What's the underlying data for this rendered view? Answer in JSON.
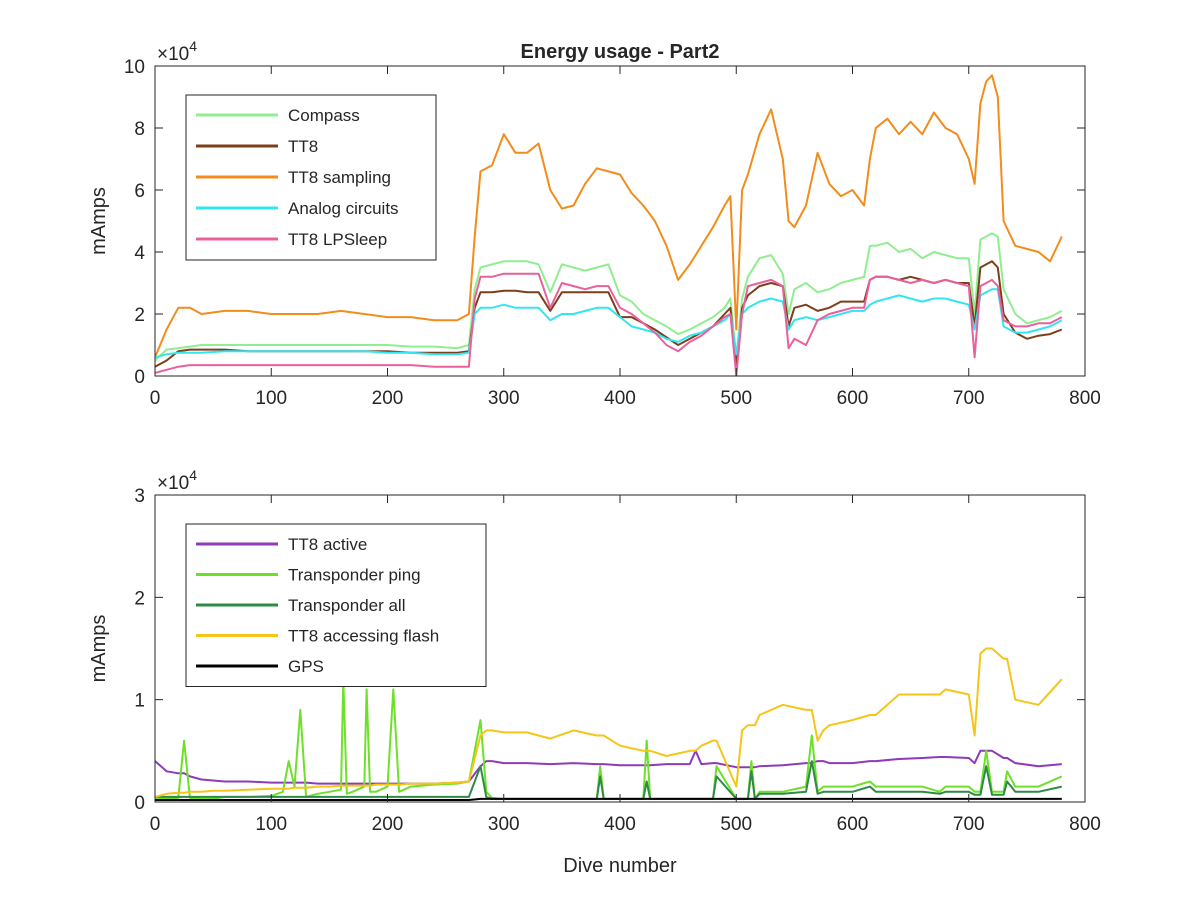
{
  "figure": {
    "xlabel": "Dive number"
  },
  "chart_data": [
    {
      "type": "line",
      "title": "Energy usage - Part2",
      "xlabel": "",
      "ylabel": "mAmps",
      "exponent_label": "×10",
      "exponent_power": "4",
      "xlim": [
        0,
        800
      ],
      "ylim": [
        0,
        100000
      ],
      "xticks": [
        0,
        100,
        200,
        300,
        400,
        500,
        600,
        700,
        800
      ],
      "xtick_labels": [
        "0",
        "100",
        "200",
        "300",
        "400",
        "500",
        "600",
        "700",
        "800"
      ],
      "yticks": [
        0,
        20000,
        40000,
        60000,
        80000,
        100000
      ],
      "ytick_labels": [
        "0",
        "2",
        "4",
        "6",
        "8",
        "10"
      ],
      "grid": false,
      "legend_position": "top-left",
      "x": [
        0,
        10,
        20,
        30,
        40,
        60,
        80,
        100,
        120,
        140,
        160,
        180,
        200,
        220,
        240,
        260,
        270,
        275,
        280,
        290,
        300,
        310,
        320,
        330,
        340,
        350,
        360,
        370,
        380,
        390,
        400,
        410,
        420,
        430,
        440,
        450,
        460,
        470,
        480,
        490,
        495,
        500,
        505,
        510,
        520,
        530,
        540,
        545,
        550,
        560,
        570,
        580,
        590,
        600,
        610,
        615,
        620,
        630,
        640,
        650,
        660,
        670,
        680,
        690,
        700,
        705,
        710,
        715,
        720,
        725,
        730,
        740,
        750,
        760,
        770,
        780
      ],
      "series": [
        {
          "name": "Compass",
          "color": "#90ee90",
          "values": [
            5000,
            8500,
            9000,
            9500,
            10000,
            10000,
            10000,
            10000,
            10000,
            10000,
            10000,
            10000,
            10000,
            9500,
            9500,
            9000,
            10000,
            28000,
            35000,
            36000,
            37000,
            37000,
            37000,
            36000,
            27000,
            36000,
            35000,
            34000,
            35000,
            36000,
            26000,
            24000,
            20000,
            18000,
            16000,
            13500,
            15000,
            17000,
            19000,
            22000,
            25000,
            6000,
            25000,
            32000,
            38000,
            39000,
            33000,
            20000,
            28000,
            30000,
            27000,
            28000,
            30000,
            31000,
            32000,
            42000,
            42000,
            43000,
            40000,
            41000,
            38000,
            40000,
            39000,
            38000,
            38000,
            20000,
            44000,
            45000,
            46000,
            45000,
            28000,
            20000,
            17000,
            18000,
            19000,
            21000
          ]
        },
        {
          "name": "TT8",
          "color": "#7b3f1a",
          "values": [
            3000,
            5000,
            8000,
            8500,
            8500,
            8500,
            8000,
            8000,
            8000,
            8000,
            8000,
            8000,
            8000,
            7500,
            7500,
            7500,
            8000,
            22000,
            27000,
            27000,
            27500,
            27500,
            27000,
            27000,
            21000,
            27000,
            27000,
            27000,
            27000,
            27000,
            19000,
            19000,
            17000,
            15000,
            12500,
            10000,
            12000,
            14000,
            16000,
            20000,
            22000,
            3000,
            22000,
            26000,
            29000,
            30000,
            29000,
            16000,
            22000,
            23000,
            21000,
            22000,
            24000,
            24000,
            24000,
            31000,
            32000,
            32000,
            31000,
            32000,
            31000,
            30000,
            31000,
            30000,
            30000,
            16000,
            35000,
            36000,
            37000,
            35000,
            20000,
            14000,
            12000,
            13000,
            13500,
            15000
          ]
        },
        {
          "name": "TT8 sampling",
          "color": "#f28c1c",
          "values": [
            6000,
            15000,
            22000,
            22000,
            20000,
            21000,
            21000,
            20000,
            20000,
            20000,
            21000,
            20000,
            19000,
            19000,
            18000,
            18000,
            20000,
            45000,
            66000,
            68000,
            78000,
            72000,
            72000,
            75000,
            60000,
            54000,
            55000,
            62000,
            67000,
            66000,
            65000,
            59000,
            55000,
            50000,
            42000,
            31000,
            36000,
            42000,
            48000,
            55000,
            58000,
            15000,
            60000,
            65000,
            78000,
            86000,
            70000,
            50000,
            48000,
            55000,
            72000,
            62000,
            58000,
            60000,
            55000,
            70000,
            80000,
            83000,
            78000,
            82000,
            78000,
            85000,
            80000,
            78000,
            70000,
            62000,
            88000,
            95000,
            97000,
            90000,
            50000,
            42000,
            41000,
            40000,
            37000,
            45000
          ]
        },
        {
          "name": "Analog circuits",
          "color": "#33e5f0",
          "values": [
            6000,
            7000,
            7500,
            7500,
            7500,
            8000,
            8000,
            8000,
            8000,
            8000,
            8000,
            8000,
            7500,
            7500,
            7000,
            7000,
            7500,
            20000,
            22000,
            22000,
            23000,
            22000,
            22000,
            22000,
            18000,
            20000,
            20000,
            21000,
            22000,
            22000,
            19000,
            16000,
            15000,
            14000,
            12000,
            11000,
            13000,
            14000,
            16000,
            18000,
            20000,
            7000,
            20000,
            22000,
            24000,
            25000,
            24000,
            15000,
            18000,
            19000,
            18000,
            19000,
            20000,
            21000,
            21000,
            23000,
            24000,
            25000,
            26000,
            25000,
            24000,
            25000,
            25000,
            24000,
            23000,
            15000,
            26000,
            27000,
            28000,
            28000,
            16000,
            14000,
            14000,
            15000,
            16000,
            18000
          ]
        },
        {
          "name": "TT8 LPSleep",
          "color": "#e9609c",
          "values": [
            1000,
            2000,
            3000,
            3500,
            3500,
            3500,
            3500,
            3500,
            3500,
            3500,
            3500,
            3500,
            3500,
            3500,
            3000,
            3000,
            3000,
            25000,
            32000,
            32000,
            33000,
            33000,
            33000,
            33000,
            22000,
            30000,
            29000,
            28000,
            29000,
            29000,
            22000,
            20000,
            17000,
            14000,
            10000,
            8000,
            11000,
            13000,
            16000,
            19000,
            20000,
            0,
            20000,
            29000,
            30000,
            31000,
            29000,
            9000,
            12000,
            10000,
            18000,
            20000,
            21000,
            22000,
            22000,
            31000,
            32000,
            32000,
            31000,
            30000,
            31000,
            30000,
            31000,
            30000,
            29000,
            6000,
            29000,
            30000,
            31000,
            29000,
            18000,
            16000,
            16000,
            17000,
            17000,
            19000
          ]
        }
      ]
    },
    {
      "type": "line",
      "title": "",
      "xlabel": "Dive number",
      "ylabel": "mAmps",
      "exponent_label": "×10",
      "exponent_power": "4",
      "xlim": [
        0,
        800
      ],
      "ylim": [
        0,
        30000
      ],
      "xticks": [
        0,
        100,
        200,
        300,
        400,
        500,
        600,
        700,
        800
      ],
      "xtick_labels": [
        "0",
        "100",
        "200",
        "300",
        "400",
        "500",
        "600",
        "700",
        "800"
      ],
      "yticks": [
        0,
        10000,
        20000,
        30000
      ],
      "ytick_labels": [
        "0",
        "1",
        "2",
        "3"
      ],
      "grid": false,
      "legend_position": "top-left",
      "x": [
        0,
        10,
        20,
        25,
        30,
        40,
        50,
        60,
        80,
        100,
        110,
        115,
        120,
        125,
        130,
        140,
        150,
        160,
        162,
        165,
        170,
        180,
        182,
        185,
        190,
        200,
        205,
        210,
        220,
        240,
        260,
        270,
        280,
        285,
        290,
        300,
        320,
        340,
        360,
        380,
        383,
        386,
        400,
        420,
        423,
        426,
        440,
        460,
        465,
        470,
        480,
        483,
        500,
        505,
        510,
        513,
        516,
        520,
        540,
        560,
        565,
        570,
        575,
        580,
        600,
        615,
        620,
        640,
        660,
        675,
        680,
        700,
        705,
        710,
        715,
        720,
        730,
        733,
        740,
        760,
        780
      ],
      "series": [
        {
          "name": "TT8 active",
          "color": "#8e3bb8",
          "values": [
            4000,
            3000,
            2800,
            2800,
            2500,
            2200,
            2100,
            2000,
            2000,
            1900,
            1900,
            1900,
            1900,
            1900,
            1900,
            1800,
            1800,
            1800,
            1800,
            1800,
            1800,
            1800,
            1800,
            1800,
            1800,
            1800,
            1800,
            1800,
            1800,
            1800,
            1900,
            2000,
            3500,
            4000,
            4000,
            3800,
            3800,
            3700,
            3800,
            3700,
            3700,
            3700,
            3600,
            3600,
            3600,
            3600,
            3700,
            3700,
            5000,
            3700,
            3800,
            3800,
            3400,
            3400,
            3400,
            3400,
            3400,
            3500,
            3600,
            3800,
            3800,
            4000,
            4000,
            3800,
            3800,
            4000,
            4000,
            4200,
            4300,
            4400,
            4400,
            4300,
            3800,
            5000,
            5000,
            5000,
            4300,
            4300,
            3800,
            3500,
            3700
          ]
        },
        {
          "name": "Transponder ping",
          "color": "#6fe02a",
          "values": [
            300,
            300,
            400,
            6000,
            400,
            300,
            300,
            500,
            500,
            600,
            1000,
            4000,
            1500,
            9000,
            500,
            800,
            1000,
            1200,
            12000,
            800,
            1000,
            1500,
            11000,
            1000,
            1000,
            1500,
            11000,
            1000,
            1500,
            1700,
            1800,
            2000,
            8000,
            1000,
            400,
            300,
            300,
            300,
            300,
            300,
            3500,
            300,
            300,
            300,
            6000,
            300,
            300,
            300,
            300,
            300,
            300,
            3500,
            300,
            300,
            300,
            4000,
            300,
            1000,
            1000,
            1500,
            6500,
            1000,
            1500,
            1500,
            1500,
            2000,
            1500,
            1500,
            1500,
            1000,
            1500,
            1500,
            1000,
            1000,
            5000,
            1000,
            1000,
            3000,
            1500,
            1500,
            2500
          ]
        },
        {
          "name": "Transponder all",
          "color": "#2e8b45",
          "values": [
            500,
            500,
            500,
            500,
            500,
            500,
            500,
            500,
            500,
            500,
            500,
            500,
            500,
            500,
            500,
            500,
            500,
            500,
            500,
            500,
            500,
            500,
            500,
            500,
            500,
            500,
            500,
            500,
            500,
            500,
            500,
            500,
            3500,
            500,
            300,
            300,
            300,
            300,
            300,
            300,
            2500,
            300,
            300,
            300,
            2000,
            300,
            300,
            300,
            300,
            300,
            300,
            2500,
            300,
            300,
            300,
            3000,
            300,
            800,
            800,
            1000,
            4000,
            800,
            1000,
            1000,
            1000,
            1500,
            1000,
            1000,
            1000,
            800,
            1000,
            1000,
            700,
            700,
            3500,
            700,
            700,
            2000,
            1000,
            1000,
            1500
          ]
        },
        {
          "name": "TT8 accessing flash",
          "color": "#f5c518",
          "values": [
            500,
            800,
            900,
            900,
            1000,
            1000,
            1100,
            1100,
            1200,
            1300,
            1300,
            1300,
            1400,
            1400,
            1400,
            1500,
            1500,
            1600,
            1600,
            1600,
            1600,
            1600,
            1600,
            1600,
            1700,
            1700,
            1700,
            1700,
            1800,
            1800,
            1900,
            2000,
            6500,
            7000,
            7000,
            6800,
            6800,
            6200,
            7000,
            6500,
            6500,
            6500,
            5500,
            5000,
            5000,
            5000,
            4500,
            5000,
            5000,
            5500,
            6000,
            6000,
            1500,
            7000,
            7500,
            7500,
            7500,
            8500,
            9500,
            9000,
            9000,
            6000,
            7000,
            7500,
            8000,
            8500,
            8500,
            10500,
            10500,
            10500,
            11000,
            10500,
            6500,
            14500,
            15000,
            15000,
            14000,
            14000,
            10000,
            9500,
            12000
          ]
        },
        {
          "name": "GPS",
          "color": "#000000",
          "values": [
            200,
            200,
            200,
            200,
            200,
            200,
            200,
            200,
            200,
            200,
            200,
            200,
            200,
            200,
            200,
            200,
            200,
            200,
            200,
            200,
            200,
            200,
            200,
            200,
            200,
            200,
            200,
            200,
            200,
            200,
            200,
            200,
            300,
            300,
            300,
            300,
            300,
            300,
            300,
            300,
            300,
            300,
            300,
            300,
            300,
            300,
            300,
            300,
            300,
            300,
            300,
            300,
            300,
            300,
            300,
            300,
            300,
            300,
            300,
            300,
            300,
            300,
            300,
            300,
            300,
            300,
            300,
            300,
            300,
            300,
            300,
            300,
            300,
            300,
            300,
            300,
            300,
            300,
            300,
            300,
            300
          ]
        }
      ]
    }
  ]
}
